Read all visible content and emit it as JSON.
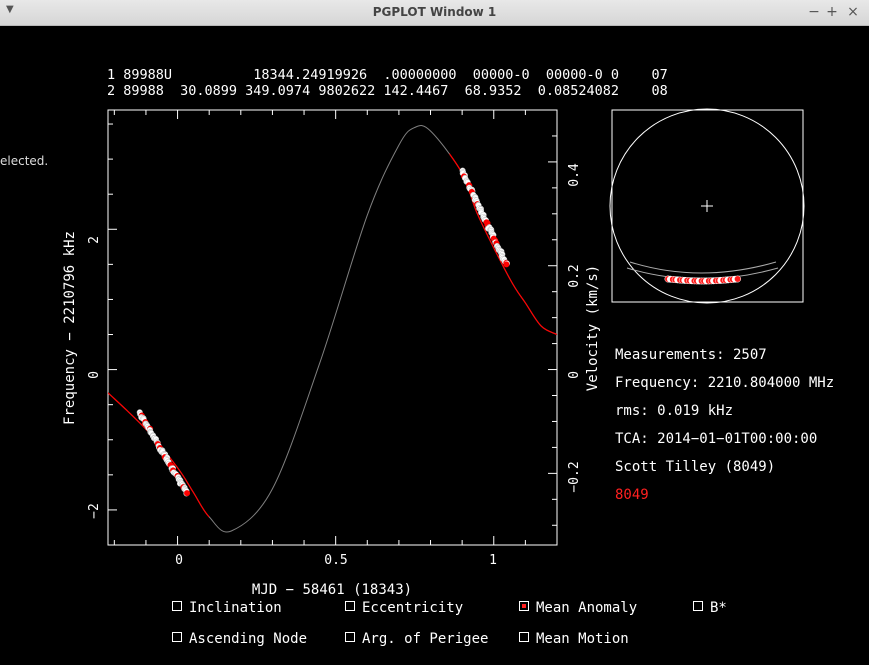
{
  "window": {
    "title": "PGPLOT Window 1",
    "menu_icon": "menu-arrow-icon",
    "minimize_label": "−",
    "maximize_label": "+",
    "close_label": "×"
  },
  "background_fragment": "elected.",
  "tle": {
    "line1": "1 89988U          18344.24919926  .00000000  00000-0  00000-0 0    07",
    "line2": "2 89988  30.0899 349.0974 9802622 142.4467  68.9352  0.08524082    08"
  },
  "chart_data": {
    "type": "scatter",
    "title": "",
    "xlabel": "MJD − 58461 (18343)",
    "ylabel": "Frequency − 2210796 kHz",
    "y2label": "Velocity (km/s)",
    "xlim": [
      -0.22,
      1.2
    ],
    "ylim": [
      -2.5,
      3.7
    ],
    "y2lim": [
      -0.338,
      0.5
    ],
    "x_ticks": [
      "0",
      "0.5",
      "1"
    ],
    "y_ticks": [
      "−2",
      "0",
      "2"
    ],
    "y2_ticks": [
      "−0.2",
      "0",
      "0.2",
      "0.4"
    ],
    "model_curve": {
      "color": "#808080",
      "highlight_color": "#ff0000",
      "points": [
        [
          -0.22,
          -0.33
        ],
        [
          -0.1,
          -0.85
        ],
        [
          0.0,
          -1.4
        ],
        [
          0.05,
          -1.75
        ],
        [
          0.1,
          -2.1
        ],
        [
          0.17,
          -2.3
        ],
        [
          0.3,
          -1.7
        ],
        [
          0.45,
          0.1
        ],
        [
          0.6,
          2.2
        ],
        [
          0.7,
          3.2
        ],
        [
          0.75,
          3.45
        ],
        [
          0.8,
          3.4
        ],
        [
          0.9,
          2.8
        ],
        [
          0.95,
          2.2
        ],
        [
          1.05,
          1.3
        ],
        [
          1.1,
          0.95
        ],
        [
          1.15,
          0.62
        ],
        [
          1.2,
          0.5
        ]
      ]
    },
    "series": [
      {
        "x_range": [
          -0.12,
          0.03
        ],
        "y_range": [
          -0.62,
          -1.76
        ]
      },
      {
        "x_range": [
          0.9,
          1.04
        ],
        "y_range": [
          2.83,
          1.5
        ]
      }
    ],
    "marker_color": "#ffffff",
    "selected_color": "#ff0000"
  },
  "info": {
    "measurements": "Measurements: 2507",
    "frequency": "Frequency: 2210.804000 MHz",
    "rms": "rms: 0.019 kHz",
    "tca": "TCA: 2014−01−01T00:00:00",
    "observer": "Scott Tilley (8049)",
    "site": "8049",
    "site_color": "#ff2020"
  },
  "checkboxes": [
    {
      "label": "Inclination",
      "checked": false
    },
    {
      "label": "Eccentricity",
      "checked": false
    },
    {
      "label": "Mean Anomaly",
      "checked": true
    },
    {
      "label": "B*",
      "checked": false
    },
    {
      "label": "Ascending Node",
      "checked": false
    },
    {
      "label": "Arg. of Perigee",
      "checked": false
    },
    {
      "label": "Mean Motion",
      "checked": false
    }
  ]
}
